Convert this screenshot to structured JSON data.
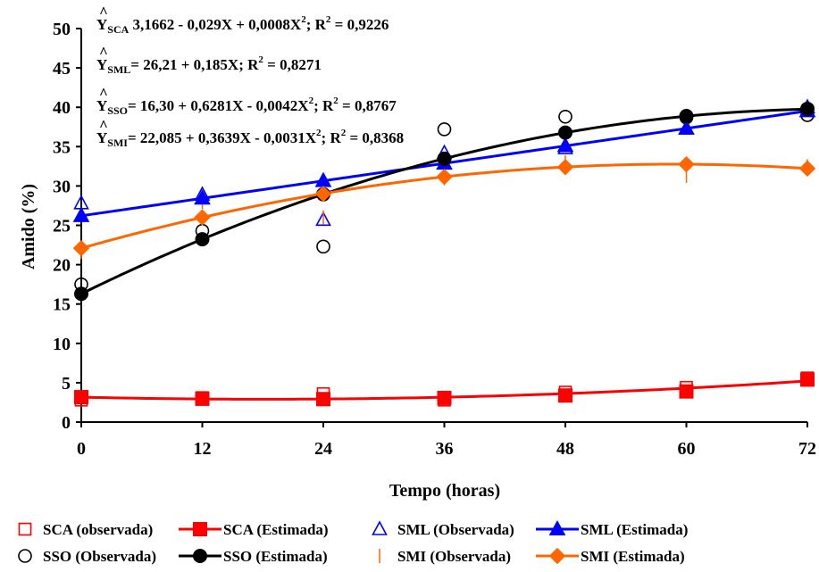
{
  "chart_data": {
    "type": "line",
    "xlabel": "Tempo (horas)",
    "ylabel": "Amido (%)",
    "xlim": [
      0,
      72
    ],
    "ylim": [
      0,
      50
    ],
    "xticks": [
      0,
      12,
      24,
      36,
      48,
      60,
      72
    ],
    "yticks": [
      0,
      5,
      10,
      15,
      20,
      25,
      30,
      35,
      40,
      45,
      50
    ],
    "grid": false,
    "legend_position": "bottom",
    "equations": [
      {
        "hat": "^",
        "y": "Y",
        "sub": "SCA",
        "text1": " 3,1662 - 0,029X + 0,0008X",
        "sup": "2",
        "text2": "; R",
        "sup2": "2",
        "text3": " =  0,9226"
      },
      {
        "hat": "^",
        "y": "Y",
        "sub": "SML",
        "text1": "= 26,21 +  0,185X; R",
        "sup": "2",
        "text2": " = 0,8271",
        "sup2": "",
        "text3": ""
      },
      {
        "hat": "^",
        "y": "Y",
        "sub": "SSO",
        "text1": "= 16,30 + 0,6281X - 0,0042X",
        "sup": "2",
        "text2": "; R",
        "sup2": "2",
        "text3": " = 0,8767"
      },
      {
        "hat": "^",
        "y": "Y",
        "sub": "SMI",
        "text1": "= 22,085 + 0,3639X - 0,0031X",
        "sup": "2",
        "text2": "; R",
        "sup2": "2",
        "text3": " = 0,8368"
      }
    ],
    "observed": [
      {
        "name": "SCA (observada)",
        "marker": "square-open",
        "color": "#ff0000",
        "x": [
          0,
          12,
          24,
          36,
          48,
          60,
          72
        ],
        "y": [
          2.8,
          3.1,
          3.6,
          2.8,
          3.8,
          4.4,
          5.6
        ]
      },
      {
        "name": "SML (Observada)",
        "marker": "triangle-open",
        "color": "#0000ff",
        "x": [
          0,
          12,
          24,
          36,
          48,
          60,
          72
        ],
        "y": [
          27.8,
          28.9,
          25.7,
          34.2,
          34.8,
          37.3,
          40.0
        ]
      },
      {
        "name": "SSO (Observada)",
        "marker": "circle-open",
        "color": "#000000",
        "x": [
          0,
          12,
          24,
          36,
          48,
          60,
          72
        ],
        "y": [
          17.5,
          24.3,
          22.3,
          37.2,
          38.8,
          38.7,
          39.0
        ]
      },
      {
        "name": "SMI (Observada)",
        "marker": "bar",
        "color": "#ff6600",
        "x": [
          0,
          12,
          24,
          36,
          48,
          60,
          72
        ],
        "y": [
          21.6,
          28.0,
          26.0,
          31.0,
          33.0,
          31.3,
          32.5
        ]
      }
    ],
    "estimated": [
      {
        "name": "SCA (Estimada)",
        "marker": "square-filled",
        "color": "#ff0000",
        "x": [
          0,
          12,
          24,
          36,
          48,
          60,
          72
        ],
        "y": [
          3.17,
          2.96,
          2.92,
          3.07,
          3.38,
          3.89,
          5.4
        ],
        "model": {
          "a": 3.1662,
          "b": -0.029,
          "c": 0.0008
        }
      },
      {
        "name": "SML (Estimada)",
        "marker": "triangle-filled",
        "color": "#0000ff",
        "x": [
          0,
          12,
          24,
          36,
          48,
          60,
          72
        ],
        "y": [
          26.21,
          28.43,
          30.65,
          32.87,
          35.09,
          37.31,
          39.53
        ],
        "model": {
          "a": 26.21,
          "b": 0.185,
          "c": 0
        }
      },
      {
        "name": "SSO  (Estimada)",
        "marker": "circle-filled",
        "color": "#000000",
        "x": [
          0,
          12,
          24,
          36,
          48,
          60,
          72
        ],
        "y": [
          16.3,
          23.23,
          28.95,
          33.47,
          36.78,
          38.89,
          39.8
        ],
        "model": {
          "a": 16.3,
          "b": 0.6281,
          "c": -0.0042
        }
      },
      {
        "name": "SMI (Estimada)",
        "marker": "diamond-filled",
        "color": "#ff6600",
        "x": [
          0,
          12,
          24,
          36,
          48,
          60,
          72
        ],
        "y": [
          22.09,
          26.01,
          29.0,
          31.16,
          32.4,
          32.75,
          32.22
        ],
        "model": {
          "a": 22.085,
          "b": 0.3639,
          "c": -0.0031
        }
      }
    ],
    "legend": [
      {
        "label": "SCA (observada)",
        "marker": "square-open",
        "color": "#ff0000",
        "line": false
      },
      {
        "label": "SCA (Estimada)",
        "marker": "square-filled",
        "color": "#ff0000",
        "line": true
      },
      {
        "label": "SML (Observada)",
        "marker": "triangle-open",
        "color": "#0000ff",
        "line": false
      },
      {
        "label": "SML (Estimada)",
        "marker": "triangle-filled",
        "color": "#0000ff",
        "line": true
      },
      {
        "label": "SSO (Observada)",
        "marker": "circle-open",
        "color": "#000000",
        "line": false
      },
      {
        "label": "SSO  (Estimada)",
        "marker": "circle-filled",
        "color": "#000000",
        "line": true
      },
      {
        "label": "SMI (Observada)",
        "marker": "bar",
        "color": "#ff6600",
        "line": false
      },
      {
        "label": "SMI (Estimada)",
        "marker": "diamond-filled",
        "color": "#ff6600",
        "line": true
      }
    ]
  }
}
